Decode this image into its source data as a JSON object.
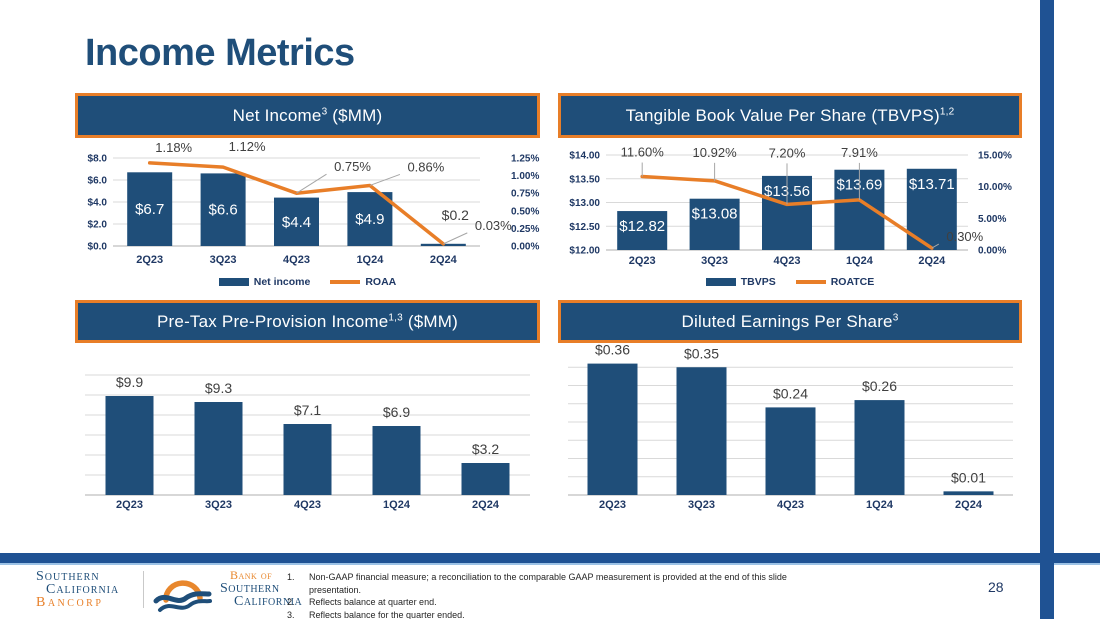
{
  "slide": {
    "title": "Income Metrics",
    "colors": {
      "navy": "#1F4E79",
      "orange": "#E87E28",
      "footer_blue": "#1F5293",
      "light_blue": "#9CC2E5",
      "grid": "#D9D9D9",
      "label_gray": "#404040"
    }
  },
  "chart_data": [
    {
      "type": "bar+line",
      "title": {
        "text": "Net Income",
        "sup": "3",
        "suffix": " ($MM)"
      },
      "categories": [
        "2Q23",
        "3Q23",
        "4Q23",
        "1Q24",
        "2Q24"
      ],
      "bars": {
        "name": "Net income",
        "values": [
          6.7,
          6.6,
          4.4,
          4.9,
          0.2
        ],
        "labels": [
          "$6.7",
          "$6.6",
          "$4.4",
          "$4.9",
          "$0.2"
        ]
      },
      "line": {
        "name": "ROAA",
        "values": [
          1.18,
          1.12,
          0.75,
          0.86,
          0.03
        ],
        "labels": [
          "1.18%",
          "1.12%",
          "0.75%",
          "0.86%",
          "0.03%"
        ]
      },
      "left_axis": {
        "min": 0,
        "max": 8,
        "values": [
          8,
          6,
          4,
          2,
          0
        ],
        "labels": [
          "$8.0",
          "$6.0",
          "$4.0",
          "$2.0",
          "$0.0"
        ]
      },
      "right_axis": {
        "min": 0,
        "max": 1.25,
        "values": [
          1.25,
          1.0,
          0.75,
          0.5,
          0.25,
          0
        ],
        "labels": [
          "1.25%",
          "1.00%",
          "0.75%",
          "0.50%",
          "0.25%",
          "0.00%"
        ]
      },
      "legend": [
        {
          "type": "bar",
          "label": "Net income"
        },
        {
          "type": "line",
          "label": "ROAA"
        }
      ],
      "legend_position": "bottom",
      "grid": true
    },
    {
      "type": "bar+line",
      "title": {
        "text": "Tangible Book Value Per Share (TBVPS)",
        "sup": "1,2",
        "suffix": ""
      },
      "categories": [
        "2Q23",
        "3Q23",
        "4Q23",
        "1Q24",
        "2Q24"
      ],
      "bars": {
        "name": "TBVPS",
        "values": [
          12.82,
          13.08,
          13.56,
          13.69,
          13.71
        ],
        "labels": [
          "$12.82",
          "$13.08",
          "$13.56",
          "$13.69",
          "$13.71"
        ]
      },
      "line": {
        "name": "ROATCE",
        "values": [
          11.6,
          10.92,
          7.2,
          7.91,
          0.3
        ],
        "labels": [
          "11.60%",
          "10.92%",
          "7.20%",
          "7.91%",
          "0.30%"
        ]
      },
      "left_axis": {
        "min": 12,
        "max": 14,
        "values": [
          14,
          13.5,
          13,
          12.5,
          12
        ],
        "labels": [
          "$14.00",
          "$13.50",
          "$13.00",
          "$12.50",
          "$12.00"
        ]
      },
      "right_axis": {
        "min": 0,
        "max": 15,
        "values": [
          15,
          10,
          5,
          0
        ],
        "labels": [
          "15.00%",
          "10.00%",
          "5.00%",
          "0.00%"
        ]
      },
      "legend": [
        {
          "type": "bar",
          "label": "TBVPS"
        },
        {
          "type": "line",
          "label": "ROATCE"
        }
      ],
      "legend_position": "bottom",
      "grid": true
    },
    {
      "type": "bar",
      "title": {
        "text": "Pre-Tax Pre-Provision Income",
        "sup": "1,3",
        "suffix": " ($MM)"
      },
      "categories": [
        "2Q23",
        "3Q23",
        "4Q23",
        "1Q24",
        "2Q24"
      ],
      "bars": {
        "values": [
          9.9,
          9.3,
          7.1,
          6.9,
          3.2
        ],
        "labels": [
          "$9.9",
          "$9.3",
          "$7.1",
          "$6.9",
          "$3.2"
        ]
      },
      "ylim": [
        0,
        12.2
      ],
      "grid_values": [
        2,
        4,
        6,
        8,
        10,
        12
      ],
      "grid": true
    },
    {
      "type": "bar",
      "title": {
        "text": "Diluted Earnings Per Share",
        "sup": "3",
        "suffix": ""
      },
      "categories": [
        "2Q23",
        "3Q23",
        "4Q23",
        "1Q24",
        "2Q24"
      ],
      "bars": {
        "values": [
          0.36,
          0.35,
          0.24,
          0.26,
          0.01
        ],
        "labels": [
          "$0.36",
          "$0.35",
          "$0.24",
          "$0.26",
          "$0.01"
        ]
      },
      "ylim": [
        0,
        0.4
      ],
      "grid_values": [
        0.05,
        0.1,
        0.15,
        0.2,
        0.25,
        0.3,
        0.35
      ],
      "grid": true
    }
  ],
  "footer": {
    "logo1": {
      "line1": "Southern",
      "line2": "California",
      "line3": "Bancorp"
    },
    "logo2": {
      "line1": "Bank of",
      "line2": "Southern",
      "line3": "California"
    },
    "footnotes": [
      {
        "num": "1.",
        "text": "Non-GAAP financial measure; a reconciliation to the comparable GAAP measurement is provided at the end of this slide presentation."
      },
      {
        "num": "2.",
        "text": "Reflects balance at quarter end."
      },
      {
        "num": "3.",
        "text": "Reflects balance for the quarter ended."
      }
    ],
    "page_number": "28"
  }
}
